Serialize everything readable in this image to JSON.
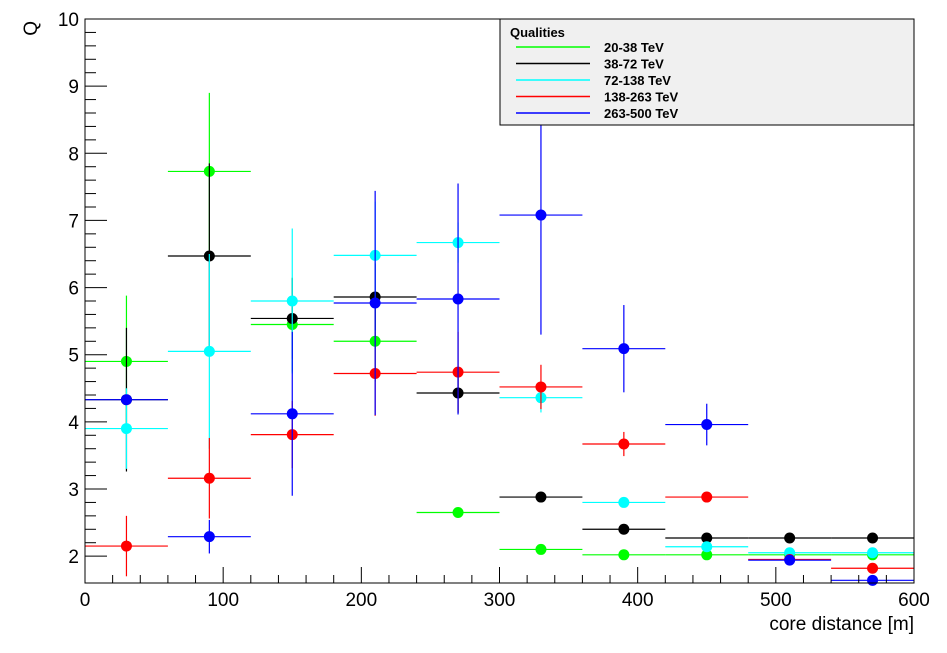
{
  "chart_data": {
    "type": "scatter",
    "title": "",
    "xlabel": "core distance [m]",
    "ylabel": "Q",
    "xlim": [
      0,
      600
    ],
    "ylim": [
      1.6,
      10
    ],
    "x_ticks": [
      0,
      100,
      200,
      300,
      400,
      500,
      600
    ],
    "y_ticks": [
      2,
      3,
      4,
      5,
      6,
      7,
      8,
      9,
      10
    ],
    "grid": false,
    "legend": {
      "title": "Qualities",
      "placement": "top-right"
    },
    "x_bin_halfwidth": 30,
    "series": [
      {
        "name": "20-38 TeV",
        "color": "#00ff00",
        "points": [
          {
            "x": 30,
            "y": 4.9,
            "yerr": 0.98
          },
          {
            "x": 90,
            "y": 7.73,
            "yerr": 1.17
          },
          {
            "x": 150,
            "y": 5.45,
            "yerr": 0.7
          },
          {
            "x": 210,
            "y": 5.2,
            "yerr": 0.6
          },
          {
            "x": 270,
            "y": 2.65,
            "yerr": 0.0
          },
          {
            "x": 330,
            "y": 2.1,
            "yerr": 0.0
          },
          {
            "x": 390,
            "y": 2.02,
            "yerr": 0.0
          },
          {
            "x": 450,
            "y": 2.02,
            "yerr": 0.0
          },
          {
            "x": 510,
            "y": 2.02,
            "yerr": 0.0
          },
          {
            "x": 570,
            "y": 2.02,
            "yerr": 0.0
          }
        ]
      },
      {
        "name": "38-72 TeV",
        "color": "#000000",
        "points": [
          {
            "x": 30,
            "y": 4.33,
            "yerr": 1.07
          },
          {
            "x": 90,
            "y": 6.47,
            "yerr": 1.38
          },
          {
            "x": 150,
            "y": 5.54,
            "yerr": 0.6
          },
          {
            "x": 210,
            "y": 5.86,
            "yerr": 0.5
          },
          {
            "x": 270,
            "y": 4.43,
            "yerr": 0.3
          },
          {
            "x": 330,
            "y": 2.88,
            "yerr": 0.0
          },
          {
            "x": 390,
            "y": 2.4,
            "yerr": 0.0
          },
          {
            "x": 450,
            "y": 2.27,
            "yerr": 0.0
          },
          {
            "x": 510,
            "y": 2.27,
            "yerr": 0.0
          },
          {
            "x": 570,
            "y": 2.27,
            "yerr": 0.0
          }
        ]
      },
      {
        "name": "72-138 TeV",
        "color": "#00ffff",
        "points": [
          {
            "x": 30,
            "y": 3.9,
            "yerr": 0.6
          },
          {
            "x": 90,
            "y": 5.05,
            "yerr": 1.45
          },
          {
            "x": 150,
            "y": 5.8,
            "yerr": 1.08
          },
          {
            "x": 210,
            "y": 6.48,
            "yerr": 0.8
          },
          {
            "x": 270,
            "y": 6.67,
            "yerr": 0.3
          },
          {
            "x": 330,
            "y": 4.36,
            "yerr": 0.22
          },
          {
            "x": 390,
            "y": 2.8,
            "yerr": 0.0
          },
          {
            "x": 450,
            "y": 2.14,
            "yerr": 0.0
          },
          {
            "x": 510,
            "y": 2.05,
            "yerr": 0.0
          },
          {
            "x": 570,
            "y": 2.05,
            "yerr": 0.0
          }
        ]
      },
      {
        "name": "138-263 TeV",
        "color": "#ff0000",
        "points": [
          {
            "x": 30,
            "y": 2.15,
            "yerr": 0.45
          },
          {
            "x": 90,
            "y": 3.16,
            "yerr": 0.6
          },
          {
            "x": 150,
            "y": 3.81,
            "yerr": 0.5
          },
          {
            "x": 210,
            "y": 4.72,
            "yerr": 0.63
          },
          {
            "x": 270,
            "y": 4.74,
            "yerr": 0.6
          },
          {
            "x": 330,
            "y": 4.52,
            "yerr": 0.33
          },
          {
            "x": 390,
            "y": 3.67,
            "yerr": 0.18
          },
          {
            "x": 450,
            "y": 2.88,
            "yerr": 0.0
          },
          {
            "x": 510,
            "y": 1.95,
            "yerr": 0.0
          },
          {
            "x": 570,
            "y": 1.82,
            "yerr": 0.0
          }
        ]
      },
      {
        "name": "263-500 TeV",
        "color": "#0000ff",
        "points": [
          {
            "x": 30,
            "y": 4.33,
            "yerr": 0.0
          },
          {
            "x": 90,
            "y": 2.29,
            "yerr": 0.25
          },
          {
            "x": 150,
            "y": 4.12,
            "yerr": 1.22
          },
          {
            "x": 210,
            "y": 5.77,
            "yerr": 1.67
          },
          {
            "x": 270,
            "y": 5.83,
            "yerr": 1.72
          },
          {
            "x": 330,
            "y": 7.08,
            "yerr": 1.78
          },
          {
            "x": 390,
            "y": 5.09,
            "yerr": 0.65
          },
          {
            "x": 450,
            "y": 3.96,
            "yerr": 0.31
          },
          {
            "x": 510,
            "y": 1.94,
            "yerr": 0.0
          },
          {
            "x": 570,
            "y": 1.64,
            "yerr": 0.0
          }
        ]
      }
    ]
  }
}
